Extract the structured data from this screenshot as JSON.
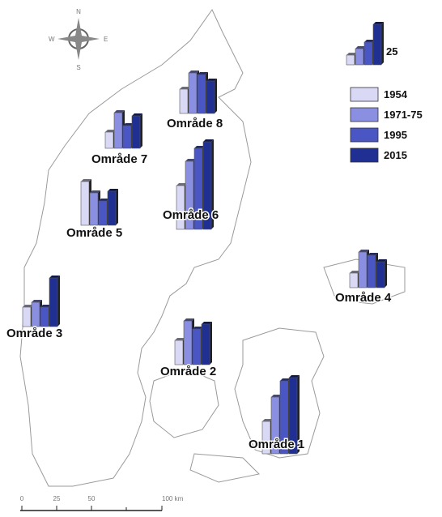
{
  "map": {
    "legend": [
      {
        "name": "1954",
        "color": "#d9d9f6"
      },
      {
        "name": "1971-75",
        "color": "#8a8fe2"
      },
      {
        "name": "1995",
        "color": "#4a56c4"
      },
      {
        "name": "2015",
        "color": "#1f2f92"
      }
    ],
    "reference": {
      "values": [
        6,
        10,
        14,
        25
      ],
      "label": "25"
    },
    "regions": [
      {
        "name": "Område 8",
        "values": [
          15,
          25,
          24,
          20
        ]
      },
      {
        "name": "Område 7",
        "values": [
          10,
          22,
          14,
          20
        ]
      },
      {
        "name": "Område 6",
        "values": [
          27,
          42,
          50,
          54
        ]
      },
      {
        "name": "Område 5",
        "values": [
          27,
          20,
          15,
          21
        ]
      },
      {
        "name": "Område 3",
        "values": [
          12,
          15,
          12,
          30
        ]
      },
      {
        "name": "Område 4",
        "values": [
          9,
          22,
          20,
          16
        ]
      },
      {
        "name": "Område 2",
        "values": [
          15,
          27,
          22,
          25
        ]
      },
      {
        "name": "Område 1",
        "values": [
          20,
          35,
          45,
          47
        ]
      }
    ],
    "scale": [
      "0",
      "25",
      "50",
      "100 km"
    ]
  },
  "compass": {
    "n": "N",
    "e": "E",
    "s": "S",
    "w": "W"
  }
}
